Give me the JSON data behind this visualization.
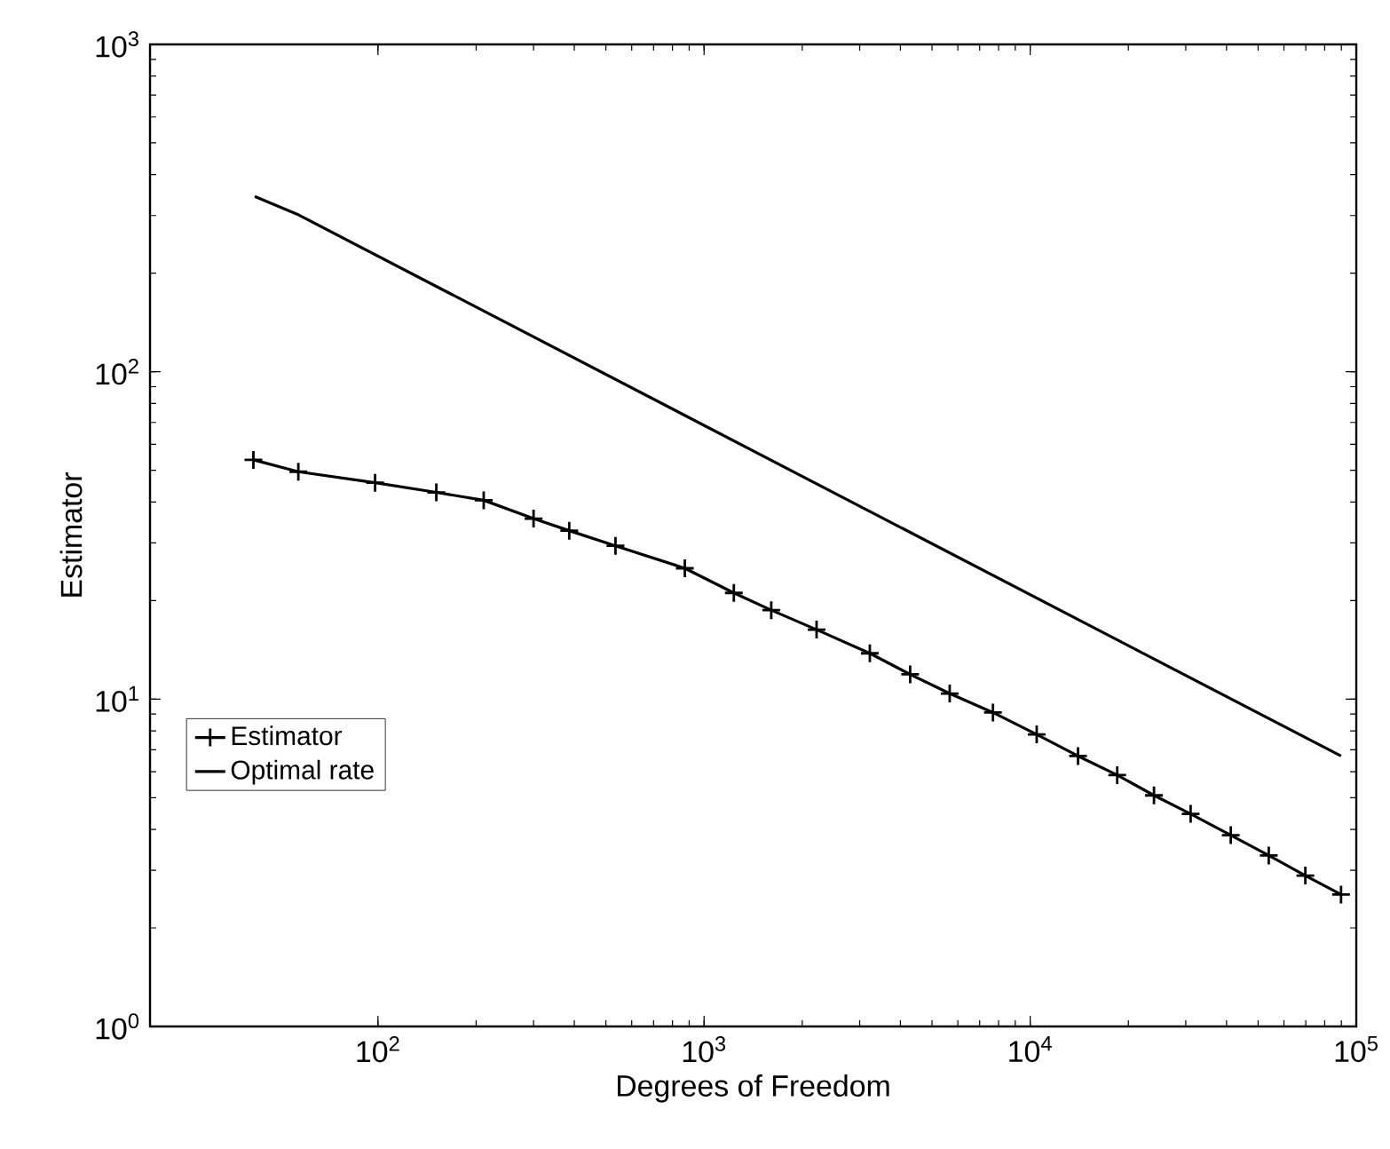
{
  "chart_data": {
    "type": "line",
    "xlabel": "Degrees of Freedom",
    "ylabel": "Estimator",
    "log": "xy",
    "xlim": [
      20,
      100000
    ],
    "ylim": [
      1,
      1000
    ],
    "xticks": [
      {
        "value": 100,
        "label": "10$^{2}$"
      },
      {
        "value": 1000,
        "label": "10$^{3}$"
      },
      {
        "value": 10000,
        "label": "10$^{4}$"
      },
      {
        "value": 100000,
        "label": "10$^{5}$"
      }
    ],
    "yticks": [
      {
        "value": 1,
        "label": "10$^{0}$"
      },
      {
        "value": 10,
        "label": "10$^{1}$"
      },
      {
        "value": 100,
        "label": "10$^{2}$"
      },
      {
        "value": 1000,
        "label": "10$^{3}$"
      }
    ],
    "grid": false,
    "legend": "bottom left",
    "series": [
      {
        "name": "Estimator",
        "color": "#000000",
        "marker": "cross",
        "line_style": "solid",
        "x": [
          41.5,
          57,
          98,
          151,
          211,
          300,
          386,
          535,
          873,
          1234,
          1607,
          2213,
          3223,
          4285,
          5665,
          7690,
          10470,
          14020,
          18490,
          23970,
          31050,
          41220,
          53900,
          69800,
          89800
        ],
        "values": [
          53.8,
          49.5,
          45.8,
          42.8,
          40.5,
          35.6,
          32.7,
          29.4,
          25.1,
          21.1,
          18.7,
          16.3,
          13.8,
          11.9,
          10.4,
          9.1,
          7.8,
          6.7,
          5.86,
          5.08,
          4.46,
          3.84,
          3.33,
          2.89,
          2.53
        ]
      },
      {
        "name": "Optimal rate",
        "color": "#000000",
        "marker": "none",
        "line_style": "solid",
        "x": [
          41.9,
          56.5,
          89800
        ],
        "values": [
          343,
          303,
          6.7
        ]
      }
    ]
  }
}
